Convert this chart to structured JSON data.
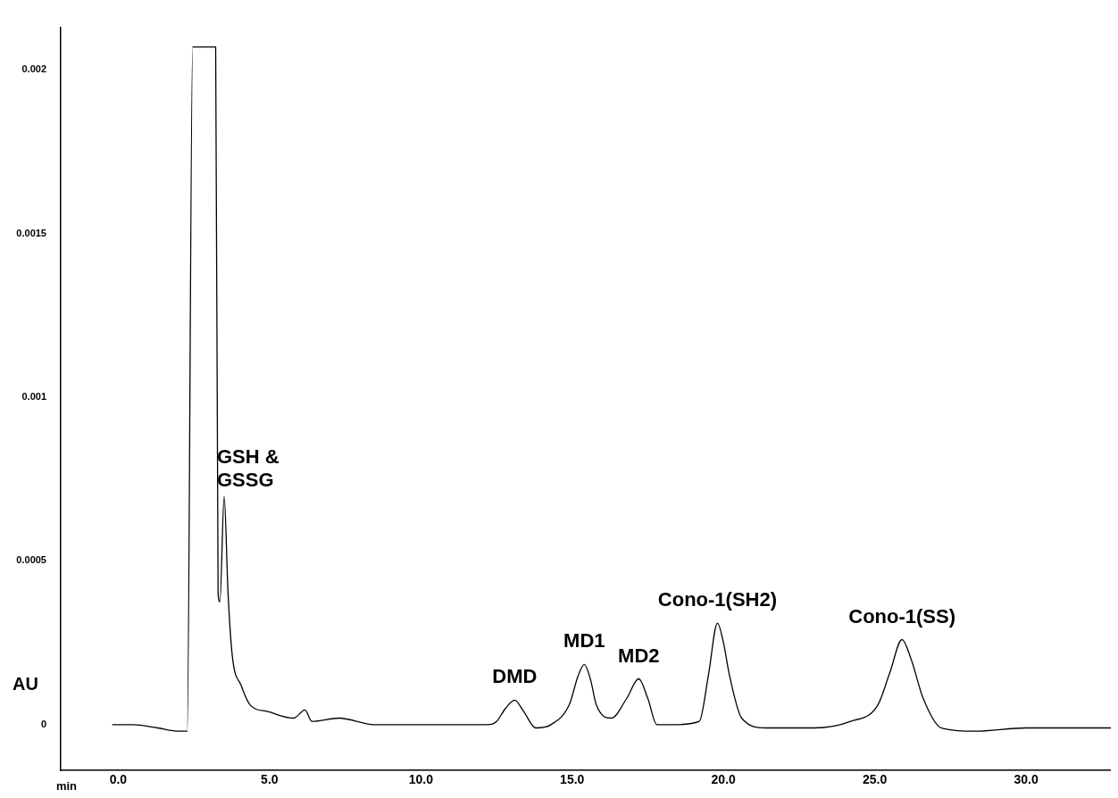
{
  "chart_data": {
    "type": "line",
    "xlabel": "min",
    "ylabel": "AU",
    "series": [
      {
        "color": "#000000",
        "x": [
          -0.2,
          0.5,
          1.3,
          2.0,
          2.28,
          2.46,
          3.22,
          3.3,
          3.36,
          3.5,
          3.63,
          3.77,
          4.06,
          4.36,
          4.94,
          5.8,
          6.17,
          6.4,
          7.3,
          8.45,
          9.5,
          11.0,
          12.2,
          12.5,
          12.8,
          13.1,
          13.4,
          13.8,
          14.3,
          14.9,
          15.2,
          15.4,
          15.6,
          15.8,
          16.3,
          16.8,
          17.2,
          17.5,
          17.8,
          18.4,
          19.2,
          19.5,
          19.8,
          20.0,
          20.2,
          20.6,
          21.4,
          23.0,
          24.2,
          25.1,
          25.5,
          25.9,
          26.2,
          26.6,
          27.2,
          28.3,
          30.0,
          32.8
        ],
        "values": [
          0,
          0,
          -1e-05,
          -2e-05,
          -2e-05,
          0.00207,
          0.00207,
          0.0004,
          0.000375,
          0.000698,
          0.0004,
          0.00021,
          0.00012,
          6e-05,
          4e-05,
          2e-05,
          4.5e-05,
          1e-05,
          2e-05,
          0,
          0,
          0,
          0,
          1e-05,
          5e-05,
          7.5e-05,
          4e-05,
          -1e-05,
          0,
          6e-05,
          0.00015,
          0.000184,
          0.00014,
          6e-05,
          2e-05,
          8e-05,
          0.00014,
          8e-05,
          0,
          0,
          1e-05,
          0.00015,
          0.00031,
          0.00025,
          0.00015,
          2e-05,
          -1e-05,
          -1e-05,
          1e-05,
          6e-05,
          0.00016,
          0.00026,
          0.0002,
          8e-05,
          -1e-05,
          -2e-05,
          -1e-05,
          -1e-05
        ]
      }
    ],
    "xlim": [
      -1.9,
      32.8
    ],
    "ylim": [
      -0.00014,
      0.00213
    ],
    "xticks": [
      {
        "value": 0,
        "label": "0.0"
      },
      {
        "value": 5,
        "label": "5.0"
      },
      {
        "value": 10,
        "label": "10.0"
      },
      {
        "value": 15,
        "label": "15.0"
      },
      {
        "value": 20,
        "label": "20.0"
      },
      {
        "value": 25,
        "label": "25.0"
      },
      {
        "value": 30,
        "label": "30.0"
      }
    ],
    "yticks": [
      0,
      0.0005,
      0.001,
      0.0015,
      0.002
    ],
    "annotations": [
      {
        "text": "GSH &\nGSSG",
        "x": 3.5,
        "y": 0.000698
      },
      {
        "text": "DMD",
        "x": 13.1,
        "y": 7.5e-05
      },
      {
        "text": "MD1",
        "x": 15.4,
        "y": 0.000184
      },
      {
        "text": "MD2",
        "x": 17.2,
        "y": 0.00014
      },
      {
        "text": "Cono-1(SH2)",
        "x": 19.8,
        "y": 0.00031
      },
      {
        "text": "Cono-1(SS)",
        "x": 25.9,
        "y": 0.00026
      }
    ],
    "grid": false,
    "legend": false,
    "marker": "none",
    "line_style": "solid"
  }
}
